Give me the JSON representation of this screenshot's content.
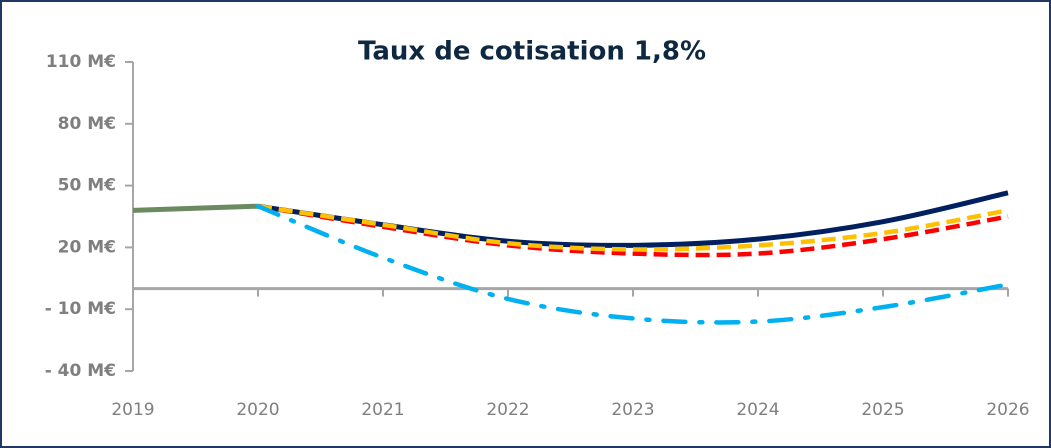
{
  "chart_data": {
    "type": "line",
    "title": "Taux de cotisation 1,8%",
    "x": [
      2019,
      2020,
      2021,
      2022,
      2023,
      2024,
      2025,
      2026
    ],
    "xlim": [
      2019,
      2026
    ],
    "xticks": [
      2019,
      2020,
      2021,
      2022,
      2023,
      2024,
      2025,
      2026
    ],
    "ylim": [
      -40,
      110
    ],
    "yticks": [
      {
        "value": -40,
        "label": "- 40  M€"
      },
      {
        "value": -10,
        "label": "- 10  M€"
      },
      {
        "value": 20,
        "label": "20  M€"
      },
      {
        "value": 50,
        "label": "50  M€"
      },
      {
        "value": 80,
        "label": "80  M€"
      },
      {
        "value": 110,
        "label": "110  M€"
      }
    ],
    "grid": false,
    "series": [
      {
        "color": "#6b8a60",
        "style": "solid",
        "values": [
          38,
          40,
          null,
          null,
          null,
          null,
          null,
          null
        ]
      },
      {
        "color": "#002060",
        "style": "solid",
        "values": [
          null,
          40,
          31,
          23,
          21,
          24,
          32.5,
          46.5
        ]
      },
      {
        "color": "#ff0000",
        "style": "dash",
        "values": [
          null,
          40,
          30,
          21,
          17,
          17,
          24,
          35
        ]
      },
      {
        "color": "#ffc000",
        "style": "dash",
        "values": [
          null,
          40,
          31,
          22,
          19,
          21,
          27,
          38
        ]
      },
      {
        "color": "#00b0f0",
        "style": "dashdot",
        "values": [
          null,
          40,
          15,
          -5,
          -14.5,
          -16,
          -9,
          2
        ]
      }
    ]
  }
}
